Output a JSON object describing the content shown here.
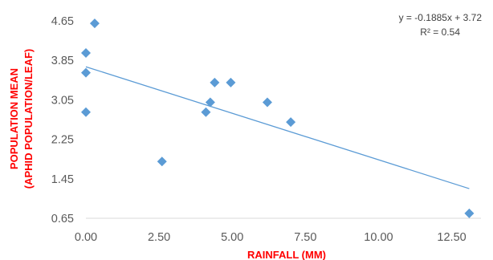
{
  "chart_data": {
    "type": "scatter",
    "title": "",
    "xlabel": "RAINFALL (MM)",
    "ylabel_line1": "POPULATION MEAN",
    "ylabel_line2": "(APHID POPULATION/LEAF)",
    "xlim": [
      0,
      13.5
    ],
    "ylim": [
      0.65,
      4.65
    ],
    "x_ticks": [
      0,
      2.5,
      5,
      7.5,
      10,
      12.5
    ],
    "x_tick_labels": [
      "0.00",
      "2.50",
      "5.00",
      "7.50",
      "10.00",
      "12.50"
    ],
    "y_ticks": [
      0.65,
      1.45,
      2.25,
      3.05,
      3.85,
      4.65
    ],
    "y_tick_labels": [
      "0.65",
      "1.45",
      "2.25",
      "3.05",
      "3.85",
      "4.65"
    ],
    "grid": false,
    "series": [
      {
        "points": [
          [
            0.3,
            4.6
          ],
          [
            0.0,
            4.0
          ],
          [
            0.0,
            3.6
          ],
          [
            0.0,
            2.8
          ],
          [
            2.6,
            1.8
          ],
          [
            4.1,
            2.8
          ],
          [
            4.25,
            3.0
          ],
          [
            4.4,
            3.4
          ],
          [
            4.95,
            3.4
          ],
          [
            6.2,
            3.0
          ],
          [
            7.0,
            2.6
          ],
          [
            13.1,
            0.75
          ]
        ],
        "marker_color": "#5b9bd5"
      }
    ],
    "trendline": {
      "slope": -0.1885,
      "intercept": 3.72,
      "x_range": [
        0,
        13.1
      ],
      "color": "#5b9bd5",
      "equation_label": "y = -0.1885x + 3.72",
      "r2_label": "R² = 0.54"
    }
  }
}
